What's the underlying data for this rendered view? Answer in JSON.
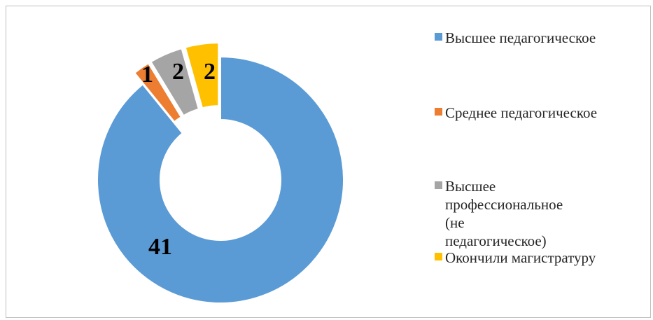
{
  "chart_data": {
    "type": "pie",
    "title": "",
    "categories": [
      "Высшее педагогическое",
      "Среднее педагогическое",
      "Высшее профессиональное (не педагогическое)",
      "Окончили магистратуру"
    ],
    "values": [
      41,
      1,
      2,
      2
    ],
    "data_labels": [
      "41",
      "1",
      "2",
      "2"
    ],
    "colors": [
      "#5b9bd5",
      "#ed7d31",
      "#a5a5a5",
      "#ffc000"
    ],
    "style": "doughnut",
    "exploded": [
      "Среднее педагогическое",
      "Высшее профессиональное (не педагогическое)",
      "Окончили магистратуру"
    ],
    "legend": "right"
  }
}
